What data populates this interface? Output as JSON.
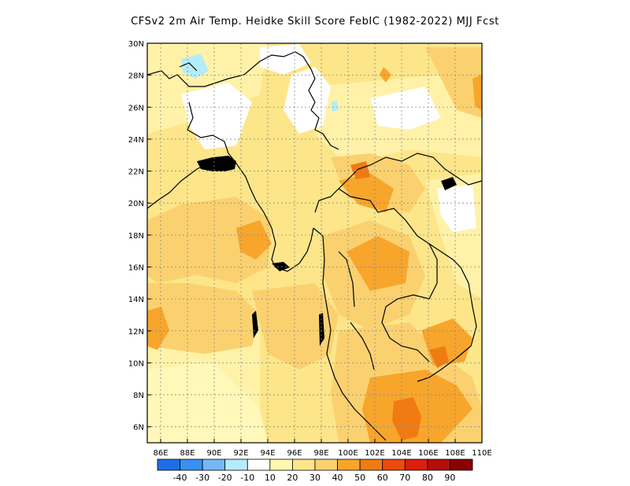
{
  "title": "CFSv2  2m Air Temp. Heidke Skill Score FebIC (1982-2022) MJJ Fcst",
  "map": {
    "lon_range": [
      85,
      110
    ],
    "lat_range": [
      5,
      30
    ],
    "x_tick_labels": [
      "86E",
      "88E",
      "90E",
      "92E",
      "94E",
      "96E",
      "98E",
      "100E",
      "102E",
      "104E",
      "106E",
      "108E",
      "110E"
    ],
    "y_tick_labels": [
      "6N",
      "8N",
      "10N",
      "12N",
      "14N",
      "16N",
      "18N",
      "20N",
      "22N",
      "24N",
      "26N",
      "28N",
      "30N"
    ],
    "grid": "dotted",
    "field": "Heidke skill score, shaded"
  },
  "colorbar": {
    "labels": [
      "-40",
      "-30",
      "-20",
      "-10",
      "10",
      "20",
      "30",
      "40",
      "50",
      "60",
      "70",
      "80",
      "90"
    ],
    "colors": [
      "#1e6fe6",
      "#3a8ff0",
      "#77b7f5",
      "#b5ecfb",
      "#ffffff",
      "#fff8b0",
      "#fde68a",
      "#fbd170",
      "#f7a62b",
      "#f07b12",
      "#eb4b10",
      "#dc1e10",
      "#b50f0a",
      "#8b0000"
    ]
  }
}
